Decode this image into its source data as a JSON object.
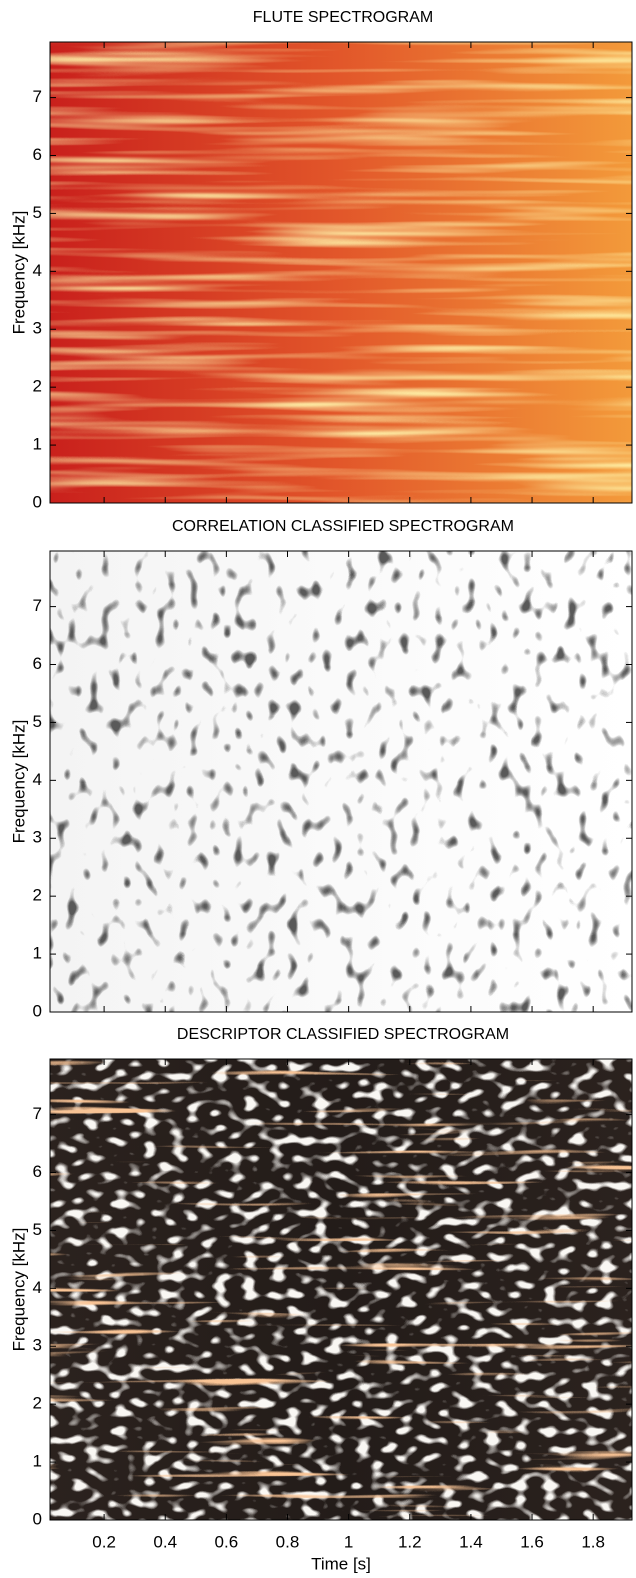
{
  "chart_data": [
    {
      "type": "heatmap",
      "title": "FLUTE SPECTROGRAM",
      "ylabel": "Frequency [kHz]",
      "xlim": [
        0.023,
        1.927
      ],
      "xticks": [
        0.2,
        0.4,
        0.6,
        0.8,
        1,
        1.2,
        1.4,
        1.6,
        1.8
      ],
      "show_xtick_labels": false,
      "ylim": [
        0,
        7.96
      ],
      "yticks": [
        0,
        1,
        2,
        3,
        4,
        5,
        6,
        7
      ],
      "colormap": [
        "#c9201c",
        "#e2572a",
        "#f39a3a"
      ],
      "texture": "#ffe46a"
    },
    {
      "type": "heatmap",
      "title": "CORRELATION CLASSIFIED SPECTROGRAM",
      "ylabel": "Frequency [kHz]",
      "xlim": [
        0.023,
        1.927
      ],
      "xticks": [
        0.2,
        0.4,
        0.6,
        0.8,
        1,
        1.2,
        1.4,
        1.6,
        1.8
      ],
      "show_xtick_labels": false,
      "ylim": [
        0,
        7.96
      ],
      "yticks": [
        0,
        1,
        2,
        3,
        4,
        5,
        6,
        7
      ],
      "colormap": [
        "#f4f4f4",
        "#fafafa",
        "#ffffff"
      ],
      "texture": "#1e1e1e"
    },
    {
      "type": "heatmap",
      "title": "DESCRIPTOR CLASSIFIED SPECTROGRAM",
      "ylabel": "Frequency [kHz]",
      "xlabel": "Time [s]",
      "xlim": [
        0.023,
        1.927
      ],
      "xticks": [
        0.2,
        0.4,
        0.6,
        0.8,
        1,
        1.2,
        1.4,
        1.6,
        1.8
      ],
      "show_xtick_labels": true,
      "ylim": [
        0,
        7.96
      ],
      "yticks": [
        0,
        1,
        2,
        3,
        4,
        5,
        6,
        7
      ],
      "colormap": [
        "#2b221e",
        "#231c19",
        "#2b221e"
      ],
      "texture": "#f2efe9"
    }
  ]
}
